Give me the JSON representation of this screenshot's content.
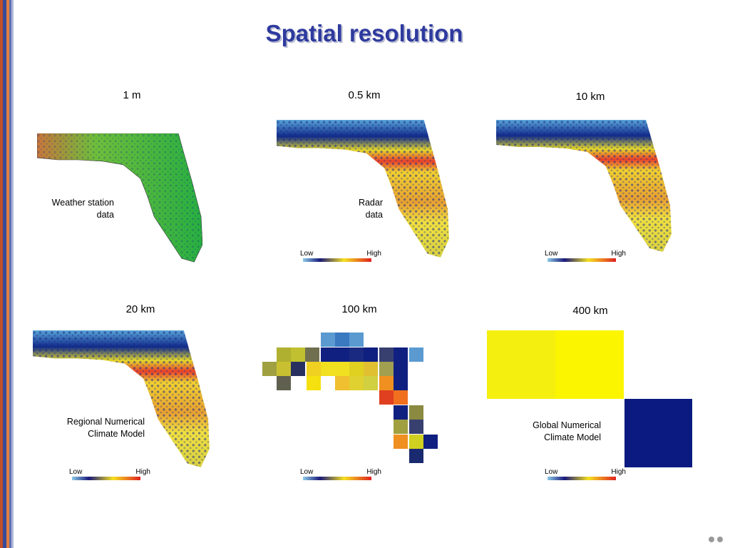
{
  "header": {
    "title": "Spatial resolution"
  },
  "panels": [
    {
      "label": "1 m",
      "caption": [
        "Weather station",
        "data"
      ]
    },
    {
      "label": "0.5 km",
      "caption": [
        "Radar",
        "data"
      ],
      "legend": {
        "low": "Low",
        "high": "High"
      }
    },
    {
      "label": "10 km",
      "legend": {
        "low": "Low",
        "high": "High"
      }
    },
    {
      "label": "20 km",
      "caption": [
        "Regional Numerical",
        "Climate Model"
      ],
      "legend": {
        "low": "Low",
        "high": "High"
      }
    },
    {
      "label": "100 km",
      "legend": {
        "low": "Low",
        "high": "High"
      }
    },
    {
      "label": "400 km",
      "caption": [
        "Global Numerical",
        "Climate Model"
      ],
      "legend": {
        "low": "Low",
        "high": "High"
      }
    }
  ]
}
